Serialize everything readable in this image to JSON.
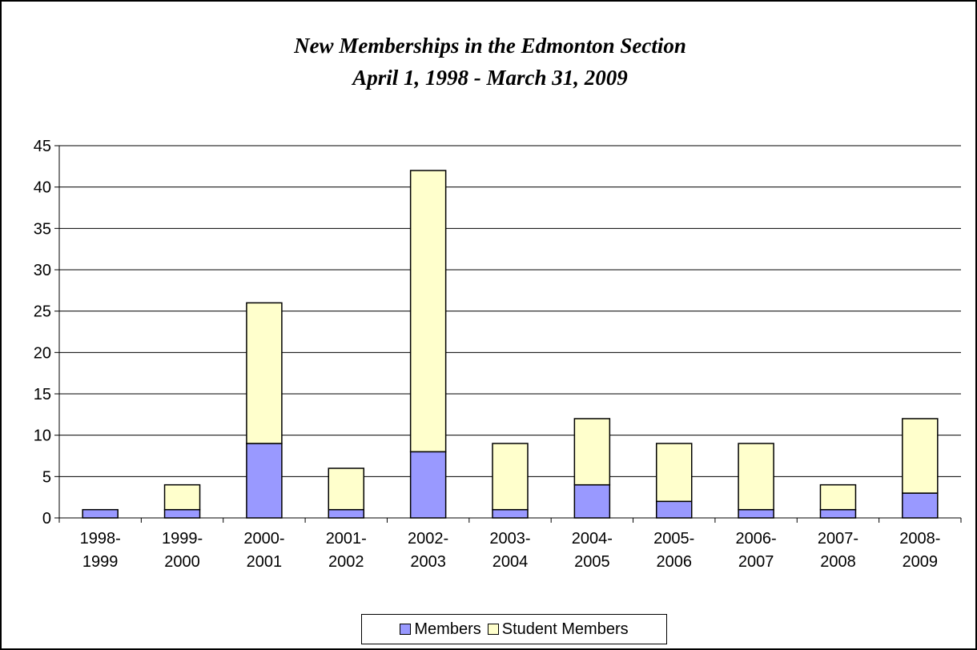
{
  "chart_data": {
    "type": "bar",
    "stacked": true,
    "title": "New Memberships in the Edmonton Section",
    "subtitle": "April 1, 1998 - March 31, 2009",
    "categories": [
      [
        "1998-",
        "1999"
      ],
      [
        "1999-",
        "2000"
      ],
      [
        "2000-",
        "2001"
      ],
      [
        "2001-",
        "2002"
      ],
      [
        "2002-",
        "2003"
      ],
      [
        "2003-",
        "2004"
      ],
      [
        "2004-",
        "2005"
      ],
      [
        "2005-",
        "2006"
      ],
      [
        "2006-",
        "2007"
      ],
      [
        "2007-",
        "2008"
      ],
      [
        "2008-",
        "2009"
      ]
    ],
    "series": [
      {
        "name": "Members",
        "color": "#9999ff",
        "values": [
          1,
          1,
          9,
          1,
          8,
          1,
          4,
          2,
          1,
          1,
          3
        ]
      },
      {
        "name": "Student Members",
        "color": "#ffffcc",
        "values": [
          0,
          3,
          17,
          5,
          34,
          8,
          8,
          7,
          8,
          3,
          9
        ]
      }
    ],
    "ylim": [
      0,
      45
    ],
    "yticks": [
      0,
      5,
      10,
      15,
      20,
      25,
      30,
      35,
      40,
      45
    ],
    "grid": true,
    "legend_position": "bottom"
  }
}
